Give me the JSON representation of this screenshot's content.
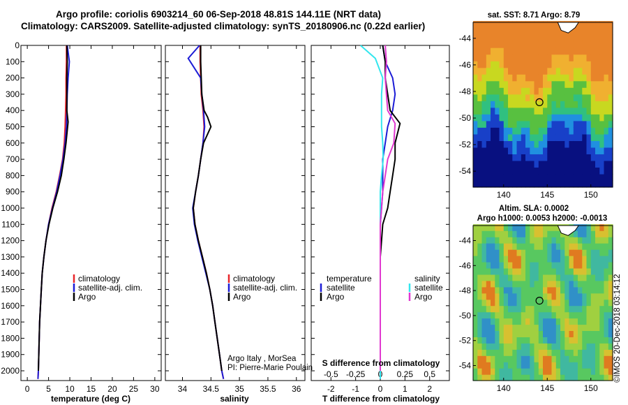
{
  "header": {
    "line1": "Argo profile: coriolis 6903214_60 06-Sep-2018 48.81S 144.11E (NRT data)",
    "line2": "Climatology: CARS2009. Satellite-adjusted climatology: synTS_20180906.nc (0.22d earlier)"
  },
  "colors": {
    "climatology": "#e8262a",
    "satellite": "#1c1cd6",
    "argo": "#000000",
    "s_satellite": "#33e6ee",
    "s_argo": "#e038d0"
  },
  "chart_data": [
    {
      "type": "line",
      "xlabel": "temperature (deg C)",
      "ylabel": "",
      "xlim": [
        -1.5,
        31.5
      ],
      "ylim": [
        2060,
        0
      ],
      "xticks": [
        "0",
        "5",
        "10",
        "15",
        "20",
        "25",
        "30"
      ],
      "yticks": [
        "0",
        "100",
        "200",
        "300",
        "400",
        "500",
        "600",
        "700",
        "800",
        "900",
        "1000",
        "1100",
        "1200",
        "1300",
        "1400",
        "1500",
        "1600",
        "1700",
        "1800",
        "1900",
        "2000"
      ],
      "grid": false,
      "legend": {
        "placement": "lower-right",
        "entries": [
          "climatology",
          "satellite-adj. clim.",
          "Argo"
        ]
      },
      "series": [
        {
          "name": "climatology",
          "color_key": "climatology",
          "x": [
            9.2,
            9.2,
            9.1,
            9.1,
            9.0,
            8.9,
            8.7,
            8.3,
            7.6,
            6.8,
            5.8,
            5.0,
            4.4,
            3.9,
            3.5,
            3.3,
            3.1,
            2.9,
            2.8,
            2.7,
            2.6,
            2.5
          ],
          "y": [
            0,
            100,
            200,
            300,
            400,
            500,
            600,
            700,
            800,
            900,
            1000,
            1100,
            1200,
            1300,
            1400,
            1500,
            1600,
            1700,
            1800,
            1900,
            2000,
            2050
          ]
        },
        {
          "name": "satellite-adj. clim.",
          "color_key": "satellite",
          "x": [
            9.4,
            9.9,
            9.6,
            9.4,
            9.3,
            9.2,
            8.9,
            8.4,
            7.7,
            6.9,
            5.9,
            5.0,
            4.4,
            3.9,
            3.5,
            3.3,
            3.1,
            2.9,
            2.8,
            2.7,
            2.6,
            2.5
          ],
          "y": [
            0,
            100,
            200,
            300,
            400,
            500,
            600,
            700,
            800,
            900,
            1000,
            1100,
            1200,
            1300,
            1400,
            1500,
            1600,
            1700,
            1800,
            1900,
            2000,
            2050
          ]
        },
        {
          "name": "Argo",
          "color_key": "argo",
          "x": [
            9.3,
            9.4,
            9.3,
            9.3,
            9.3,
            9.6,
            9.1,
            8.6,
            8.0,
            7.1,
            6.0,
            5.1,
            4.4,
            3.9,
            3.5,
            3.3,
            3.1,
            2.9,
            2.8,
            2.7,
            2.6
          ],
          "y": [
            0,
            100,
            200,
            300,
            400,
            470,
            600,
            700,
            800,
            900,
            1000,
            1100,
            1200,
            1300,
            1400,
            1500,
            1600,
            1700,
            1800,
            1900,
            2000
          ]
        }
      ]
    },
    {
      "type": "line",
      "xlabel": "salinity",
      "ylabel": "",
      "xlim": [
        33.7,
        36.15
      ],
      "ylim": [
        2060,
        0
      ],
      "xticks": [
        "34",
        "34.5",
        "35",
        "35.5",
        "36"
      ],
      "grid": false,
      "legend": {
        "placement": "lower-right",
        "entries": [
          "climatology",
          "satellite-adj. clim.",
          "Argo"
        ]
      },
      "annotations": [
        "Argo Italy , MorSea",
        "PI: Pierre-Marie Poulain"
      ],
      "series": [
        {
          "name": "climatology",
          "color_key": "climatology",
          "x": [
            34.31,
            34.31,
            34.32,
            34.33,
            34.36,
            34.38,
            34.36,
            34.32,
            34.28,
            34.23,
            34.19,
            34.22,
            34.28,
            34.35,
            34.42,
            34.48,
            34.53,
            34.57,
            34.61,
            34.65,
            34.69,
            34.72
          ],
          "y": [
            0,
            100,
            200,
            300,
            400,
            500,
            600,
            700,
            800,
            900,
            1000,
            1100,
            1200,
            1300,
            1400,
            1500,
            1600,
            1700,
            1800,
            1900,
            2000,
            2050
          ]
        },
        {
          "name": "satellite-adj. clim.",
          "color_key": "satellite",
          "x": [
            34.3,
            34.1,
            34.32,
            34.34,
            34.37,
            34.39,
            34.36,
            34.32,
            34.28,
            34.23,
            34.18,
            34.21,
            34.27,
            34.34,
            34.41,
            34.48,
            34.53,
            34.57,
            34.61,
            34.65,
            34.69,
            34.72
          ],
          "y": [
            0,
            80,
            200,
            300,
            400,
            500,
            600,
            700,
            800,
            900,
            1000,
            1100,
            1200,
            1300,
            1400,
            1500,
            1600,
            1700,
            1800,
            1900,
            2000,
            2050
          ]
        },
        {
          "name": "Argo",
          "color_key": "argo",
          "x": [
            34.32,
            34.32,
            34.33,
            34.34,
            34.38,
            34.44,
            34.5,
            34.37,
            34.32,
            34.28,
            34.23,
            34.19,
            34.22,
            34.28,
            34.35,
            34.42,
            34.48,
            34.53,
            34.57,
            34.61,
            34.65,
            34.69
          ],
          "y": [
            0,
            100,
            200,
            300,
            400,
            440,
            500,
            600,
            700,
            800,
            900,
            1000,
            1100,
            1200,
            1300,
            1400,
            1500,
            1600,
            1700,
            1800,
            1900,
            2000
          ]
        }
      ]
    },
    {
      "type": "line",
      "xlabel": "T difference from climatology",
      "top_xlabel": "S difference from climatology",
      "xlim": [
        -2.8,
        2.8
      ],
      "ylim": [
        2060,
        0
      ],
      "xticks": [
        "-2",
        "-1",
        "0",
        "1",
        "2"
      ],
      "top_xticks": [
        "-0.5",
        "-0.25",
        "0",
        "0.25",
        "0.5"
      ],
      "grid": false,
      "legend": {
        "placement": "lower",
        "groups": [
          {
            "title": "temperature",
            "entries": [
              "satellite",
              "Argo"
            ]
          },
          {
            "title": "salinity",
            "entries": [
              "satellite",
              "Argo"
            ]
          }
        ]
      },
      "series": [
        {
          "name": "temperature satellite",
          "color_key": "satellite",
          "x": [
            0.1,
            0.2,
            0.5,
            0.6,
            0.5,
            0.3,
            0.2,
            0.1,
            0.1,
            0.1,
            0.05,
            0.0,
            0.0,
            0.0,
            0.0,
            0.0,
            0.0,
            0.0,
            0.0,
            0.0,
            0.0
          ],
          "y": [
            0,
            100,
            200,
            300,
            400,
            500,
            600,
            700,
            800,
            900,
            1000,
            1100,
            1200,
            1300,
            1400,
            1500,
            1600,
            1700,
            1800,
            1900,
            2050
          ]
        },
        {
          "name": "temperature Argo",
          "color_key": "argo",
          "x": [
            0.1,
            0.2,
            0.2,
            0.3,
            0.4,
            0.8,
            0.6,
            0.6,
            0.5,
            0.4,
            0.3,
            0.1,
            0.05,
            0.0,
            0.0,
            0.0,
            0.0,
            0.0,
            0.0,
            0.0
          ],
          "y": [
            0,
            100,
            200,
            300,
            400,
            480,
            600,
            700,
            800,
            900,
            1000,
            1100,
            1200,
            1300,
            1400,
            1500,
            1600,
            1700,
            1800,
            2000
          ]
        },
        {
          "name": "salinity satellite",
          "color_key": "s_satellite",
          "x": [
            -0.8,
            -0.2,
            0.1,
            0.05,
            0.05,
            0.05,
            0.1,
            0.12,
            0.05,
            0.0,
            0.0,
            0.0,
            0.0,
            0.0,
            0.0,
            0.0,
            0.0,
            0.0,
            0.0
          ],
          "y": [
            0,
            80,
            200,
            300,
            400,
            500,
            600,
            700,
            800,
            900,
            1000,
            1100,
            1200,
            1300,
            1400,
            1500,
            1600,
            1800,
            2050
          ]
        },
        {
          "name": "salinity Argo",
          "color_key": "s_argo",
          "x": [
            0.2,
            0.25,
            0.2,
            0.25,
            0.3,
            0.6,
            0.55,
            0.3,
            0.2,
            0.1,
            0.05,
            0.0,
            0.0,
            0.0,
            0.0,
            0.0,
            0.0,
            0.0,
            0.0,
            0.0
          ],
          "y": [
            0,
            100,
            200,
            300,
            400,
            480,
            600,
            700,
            800,
            900,
            1000,
            1100,
            1200,
            1300,
            1400,
            1500,
            1600,
            1700,
            1800,
            2000
          ]
        }
      ]
    },
    {
      "type": "heatmap",
      "title": "sat. SST: 8.71  Argo: 8.79",
      "xticks": [
        "140",
        "145",
        "150"
      ],
      "yticks": [
        "-44",
        "-46",
        "-48",
        "-50",
        "-52",
        "-54"
      ],
      "xlim": [
        136.5,
        152.5
      ],
      "ylim": [
        -55.2,
        -42.8
      ],
      "marker": {
        "lon": 144.11,
        "lat": -48.81
      }
    },
    {
      "type": "heatmap",
      "title": "Altim. SLA: 0.0002",
      "subtitle": "Argo h1000: 0.0053 h2000: -0.0013",
      "xticks": [
        "140",
        "145",
        "150"
      ],
      "yticks": [
        "-44",
        "-46",
        "-48",
        "-50",
        "-52",
        "-54"
      ],
      "xlim": [
        136.5,
        152.5
      ],
      "ylim": [
        -55.2,
        -42.8
      ],
      "marker": {
        "lon": 144.11,
        "lat": -48.81
      }
    }
  ],
  "legend_labels": {
    "climatology": "climatology",
    "satellite_adj": "satellite-adj. clim.",
    "argo": "Argo",
    "temperature": "temperature",
    "salinity": "salinity",
    "satellite": "satellite"
  },
  "credit": "©IMOS 20-Dec-2018 03:14:12"
}
